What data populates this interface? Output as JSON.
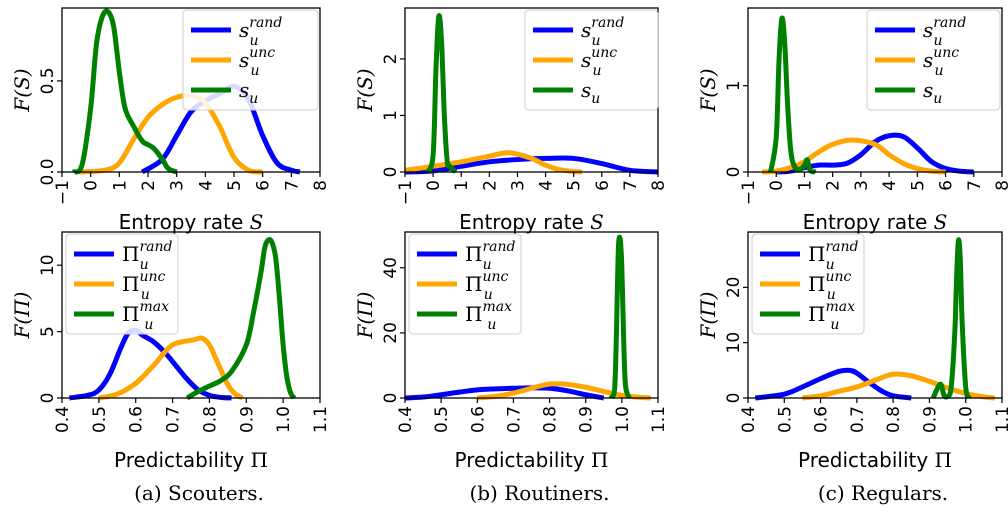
{
  "chart_data": [
    {
      "type": "line",
      "metric": "entropy",
      "caption": "(a) Scouters.",
      "xlabel": "Entropy rate",
      "xsym": "S",
      "ylabel": "F(S)",
      "xlim": [
        -1,
        8
      ],
      "ylim": [
        0,
        0.9
      ],
      "xticks": [
        "−1",
        "0",
        "1",
        "2",
        "3",
        "4",
        "5",
        "6",
        "7",
        "8"
      ],
      "yticks": [
        {
          "v": 0,
          "t": "0.0"
        },
        {
          "v": 0.5,
          "t": "0.5"
        }
      ],
      "legend_names": [
        "s",
        "s",
        "s"
      ],
      "legend_sups": [
        "rand",
        "unc",
        ""
      ],
      "legend_subs": [
        "u",
        "u",
        "u"
      ],
      "series": [
        {
          "name": "s_u^rand",
          "color": "#0000ff",
          "x": [
            1.8,
            2.5,
            3,
            3.5,
            4,
            4.5,
            5,
            5.5,
            6,
            6.5,
            7,
            7.3
          ],
          "y": [
            0.0,
            0.07,
            0.2,
            0.33,
            0.39,
            0.43,
            0.47,
            0.4,
            0.2,
            0.05,
            0.01,
            0.0
          ]
        },
        {
          "name": "s_u^unc",
          "color": "#ffa500",
          "x": [
            -0.4,
            0.5,
            1,
            1.5,
            2,
            2.5,
            3,
            3.5,
            4,
            4.5,
            5,
            5.5,
            6
          ],
          "y": [
            0.0,
            0.01,
            0.05,
            0.18,
            0.3,
            0.37,
            0.41,
            0.42,
            0.38,
            0.25,
            0.08,
            0.01,
            0.0
          ]
        },
        {
          "name": "s_u",
          "color": "#008000",
          "x": [
            -0.6,
            -0.3,
            0,
            0.2,
            0.4,
            0.6,
            0.8,
            1,
            1.2,
            1.5,
            1.8,
            2,
            2.2,
            2.5,
            2.7,
            3
          ],
          "y": [
            0.0,
            0.04,
            0.35,
            0.7,
            0.85,
            0.88,
            0.8,
            0.55,
            0.35,
            0.25,
            0.17,
            0.15,
            0.13,
            0.07,
            0.02,
            0.0
          ]
        }
      ]
    },
    {
      "type": "line",
      "metric": "entropy",
      "caption": "(b) Routiners.",
      "xlabel": "Entropy rate",
      "xsym": "S",
      "ylabel": "F(S)",
      "xlim": [
        -1,
        8
      ],
      "ylim": [
        0,
        2.9
      ],
      "xticks": [
        "−1",
        "0",
        "1",
        "2",
        "3",
        "4",
        "5",
        "6",
        "7",
        "8"
      ],
      "yticks": [
        {
          "v": 0,
          "t": "0"
        },
        {
          "v": 1,
          "t": "1"
        },
        {
          "v": 2,
          "t": "2"
        }
      ],
      "legend_names": [
        "s",
        "s",
        "s"
      ],
      "legend_sups": [
        "rand",
        "unc",
        ""
      ],
      "legend_subs": [
        "u",
        "u",
        "u"
      ],
      "series": [
        {
          "name": "s_u^rand",
          "color": "#0000ff",
          "x": [
            -1,
            0,
            1,
            2,
            3,
            4,
            5,
            6,
            7,
            8
          ],
          "y": [
            0.0,
            0.02,
            0.1,
            0.18,
            0.22,
            0.24,
            0.24,
            0.15,
            0.03,
            0.0
          ]
        },
        {
          "name": "s_u^unc",
          "color": "#ffa500",
          "x": [
            -1,
            0,
            1,
            2,
            2.7,
            3.5,
            4,
            4.5,
            5,
            5.3
          ],
          "y": [
            0.03,
            0.1,
            0.18,
            0.28,
            0.34,
            0.24,
            0.12,
            0.04,
            0.01,
            0.0
          ]
        },
        {
          "name": "s_u",
          "color": "#008000",
          "x": [
            -0.2,
            0,
            0.1,
            0.2,
            0.3,
            0.4,
            0.5,
            0.6,
            0.8
          ],
          "y": [
            0.0,
            0.3,
            1.8,
            2.75,
            2.3,
            1.0,
            0.2,
            0.1,
            0.0
          ]
        }
      ]
    },
    {
      "type": "line",
      "metric": "entropy",
      "caption": "(c) Regulars.",
      "xlabel": "Entropy rate",
      "xsym": "S",
      "ylabel": "F(S)",
      "xlim": [
        -1,
        8
      ],
      "ylim": [
        0,
        1.9
      ],
      "xticks": [
        "−1",
        "0",
        "1",
        "2",
        "3",
        "4",
        "5",
        "6",
        "7",
        "8"
      ],
      "yticks": [
        {
          "v": 0,
          "t": "0"
        },
        {
          "v": 1,
          "t": "1"
        }
      ],
      "legend_names": [
        "s",
        "s",
        "s"
      ],
      "legend_sups": [
        "rand",
        "unc",
        ""
      ],
      "legend_subs": [
        "u",
        "u",
        "u"
      ],
      "series": [
        {
          "name": "s_u^rand",
          "color": "#0000ff",
          "x": [
            0,
            0.5,
            1,
            1.5,
            2,
            2.5,
            3,
            3.5,
            4,
            4.5,
            5,
            5.5,
            6,
            6.5,
            7
          ],
          "y": [
            0.0,
            0.01,
            0.05,
            0.08,
            0.08,
            0.1,
            0.2,
            0.35,
            0.42,
            0.41,
            0.28,
            0.12,
            0.04,
            0.01,
            0.0
          ]
        },
        {
          "name": "s_u^unc",
          "color": "#ffa500",
          "x": [
            -0.5,
            0,
            0.5,
            1,
            1.5,
            2,
            2.7,
            3.5,
            4,
            4.5,
            5,
            5.5,
            6
          ],
          "y": [
            0.0,
            0.01,
            0.05,
            0.12,
            0.23,
            0.32,
            0.37,
            0.32,
            0.2,
            0.1,
            0.04,
            0.01,
            0.0
          ]
        },
        {
          "name": "s_u",
          "color": "#008000",
          "x": [
            -0.2,
            0,
            0.1,
            0.2,
            0.3,
            0.4,
            0.5,
            0.6,
            0.8,
            1,
            1.1,
            1.2,
            1.4
          ],
          "y": [
            0.0,
            0.4,
            1.3,
            1.78,
            1.5,
            0.8,
            0.3,
            0.1,
            0.02,
            0.08,
            0.14,
            0.02,
            0.0
          ]
        }
      ]
    },
    {
      "type": "line",
      "metric": "predictability",
      "xlabel": "Predictability",
      "xsym": "Π",
      "ylabel": "F(Π)",
      "xlim": [
        0.4,
        1.1
      ],
      "ylim": [
        0,
        12.5
      ],
      "xticks": [
        "0.4",
        "0.5",
        "0.6",
        "0.7",
        "0.8",
        "0.9",
        "1.0",
        "1.1"
      ],
      "yticks": [
        {
          "v": 0,
          "t": "0"
        },
        {
          "v": 5,
          "t": "5"
        },
        {
          "v": 10,
          "t": "10"
        }
      ],
      "legend_names": [
        "Π",
        "Π",
        "Π"
      ],
      "legend_sups": [
        "rand",
        "unc",
        "max"
      ],
      "legend_subs": [
        "u",
        "u",
        "u"
      ],
      "series": [
        {
          "name": "Π_u^rand",
          "color": "#0000ff",
          "x": [
            0.42,
            0.47,
            0.5,
            0.53,
            0.56,
            0.58,
            0.6,
            0.62,
            0.65,
            0.68,
            0.71,
            0.74,
            0.77,
            0.8,
            0.83,
            0.86
          ],
          "y": [
            0.0,
            0.2,
            0.6,
            1.8,
            3.8,
            4.9,
            5.1,
            4.7,
            4.2,
            3.4,
            2.4,
            1.4,
            0.6,
            0.2,
            0.05,
            0.0
          ]
        },
        {
          "name": "Π_u^unc",
          "color": "#ffa500",
          "x": [
            0.5,
            0.55,
            0.6,
            0.65,
            0.68,
            0.7,
            0.72,
            0.74,
            0.76,
            0.78,
            0.8,
            0.82,
            0.85,
            0.87,
            0.89
          ],
          "y": [
            0.0,
            0.3,
            1.1,
            2.5,
            3.5,
            4.0,
            4.2,
            4.3,
            4.4,
            4.5,
            4.0,
            2.8,
            1.0,
            0.3,
            0.0
          ]
        },
        {
          "name": "Π_u^max",
          "color": "#008000",
          "x": [
            0.74,
            0.77,
            0.8,
            0.83,
            0.86,
            0.9,
            0.92,
            0.94,
            0.95,
            0.96,
            0.97,
            0.98,
            0.99,
            1.0,
            1.01,
            1.02,
            1.03
          ],
          "y": [
            0.0,
            0.5,
            0.9,
            1.3,
            2.0,
            4.0,
            6.5,
            9.5,
            11.3,
            11.9,
            11.7,
            10.5,
            7.5,
            4.0,
            1.6,
            0.4,
            0.0
          ]
        }
      ]
    },
    {
      "type": "line",
      "metric": "predictability",
      "xlabel": "Predictability",
      "xsym": "Π",
      "ylabel": "F(Π)",
      "xlim": [
        0.4,
        1.1
      ],
      "ylim": [
        0,
        51
      ],
      "xticks": [
        "0.4",
        "0.5",
        "0.6",
        "0.7",
        "0.8",
        "0.9",
        "1.0",
        "1.1"
      ],
      "yticks": [
        {
          "v": 0,
          "t": "0"
        },
        {
          "v": 20,
          "t": "20"
        },
        {
          "v": 40,
          "t": "40"
        }
      ],
      "legend_names": [
        "Π",
        "Π",
        "Π"
      ],
      "legend_sups": [
        "rand",
        "unc",
        "max"
      ],
      "legend_subs": [
        "u",
        "u",
        "u"
      ],
      "series": [
        {
          "name": "Π_u^rand",
          "color": "#0000ff",
          "x": [
            0.4,
            0.45,
            0.5,
            0.55,
            0.6,
            0.65,
            0.7,
            0.75,
            0.8,
            0.85,
            0.9,
            0.95
          ],
          "y": [
            0.0,
            0.3,
            1.0,
            1.8,
            2.5,
            2.8,
            3.0,
            3.1,
            3.0,
            2.2,
            1.0,
            0.0
          ]
        },
        {
          "name": "Π_u^unc",
          "color": "#ffa500",
          "x": [
            0.6,
            0.65,
            0.7,
            0.75,
            0.8,
            0.85,
            0.9,
            0.95,
            1.0,
            1.05,
            1.08
          ],
          "y": [
            0.0,
            0.5,
            1.5,
            3.0,
            4.3,
            4.2,
            3.3,
            2.0,
            0.8,
            0.2,
            0.0
          ]
        },
        {
          "name": "Π_u^max",
          "color": "#008000",
          "x": [
            0.97,
            0.98,
            0.985,
            0.99,
            0.995,
            1.0,
            1.005,
            1.01,
            1.02
          ],
          "y": [
            0.0,
            3.0,
            20.0,
            45.0,
            49.0,
            40.0,
            18.0,
            4.0,
            0.0
          ]
        }
      ]
    },
    {
      "type": "line",
      "metric": "predictability",
      "xlabel": "Predictability",
      "xsym": "Π",
      "ylabel": "F(Π)",
      "xlim": [
        0.4,
        1.1
      ],
      "ylim": [
        0,
        30
      ],
      "xticks": [
        "0.4",
        "0.5",
        "0.6",
        "0.7",
        "0.8",
        "0.9",
        "1.0",
        "1.1"
      ],
      "yticks": [
        {
          "v": 0,
          "t": "0"
        },
        {
          "v": 10,
          "t": "10"
        },
        {
          "v": 20,
          "t": "20"
        }
      ],
      "legend_names": [
        "Π",
        "Π",
        "Π"
      ],
      "legend_sups": [
        "rand",
        "unc",
        "max"
      ],
      "legend_subs": [
        "u",
        "u",
        "u"
      ],
      "series": [
        {
          "name": "Π_u^rand",
          "color": "#0000ff",
          "x": [
            0.42,
            0.5,
            0.55,
            0.6,
            0.65,
            0.68,
            0.7,
            0.73,
            0.77,
            0.8,
            0.85
          ],
          "y": [
            0.0,
            0.7,
            2.0,
            3.5,
            4.8,
            5.0,
            4.5,
            3.0,
            1.2,
            0.4,
            0.0
          ]
        },
        {
          "name": "Π_u^unc",
          "color": "#ffa500",
          "x": [
            0.55,
            0.6,
            0.65,
            0.7,
            0.75,
            0.8,
            0.85,
            0.9,
            0.95,
            1.0,
            1.05,
            1.08
          ],
          "y": [
            0.0,
            0.4,
            1.2,
            2.0,
            3.2,
            4.3,
            4.0,
            3.0,
            1.8,
            0.8,
            0.2,
            0.0
          ]
        },
        {
          "name": "Π_u^max",
          "color": "#008000",
          "x": [
            0.91,
            0.93,
            0.94,
            0.95,
            0.96,
            0.97,
            0.975,
            0.98,
            0.985,
            0.99,
            1.0,
            1.01
          ],
          "y": [
            0.0,
            2.5,
            0.5,
            0.3,
            2.0,
            12.0,
            22.0,
            28.5,
            25.0,
            14.0,
            2.0,
            0.0
          ]
        }
      ]
    }
  ]
}
